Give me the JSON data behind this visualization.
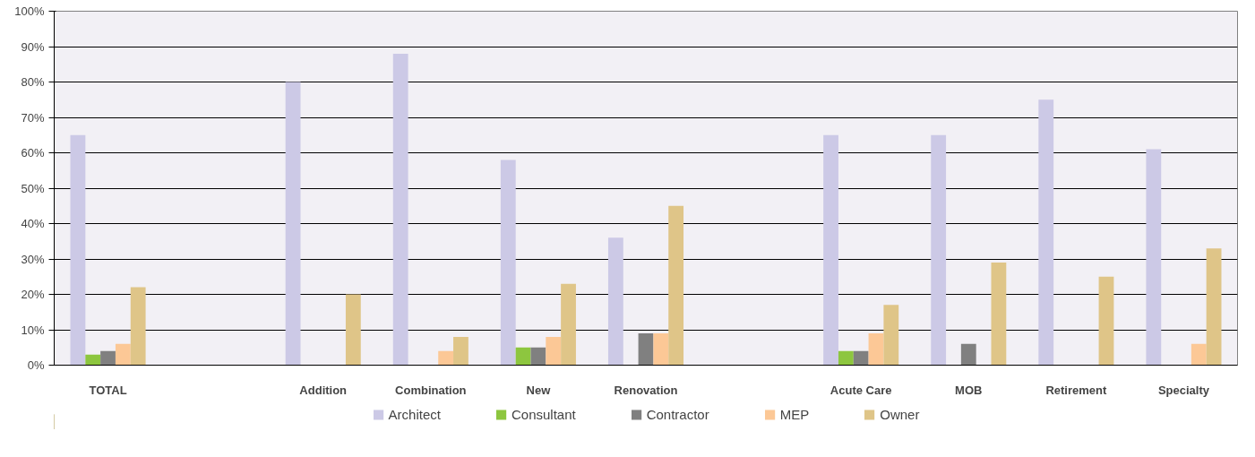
{
  "chart_data": {
    "type": "bar",
    "categories": [
      "TOTAL",
      null,
      "Addition",
      "Combination",
      "New",
      "Renovation",
      null,
      "Acute Care",
      "MOB",
      "Retirement",
      "Specialty"
    ],
    "series": [
      {
        "name": "Architect",
        "color": "#ccc9e6",
        "values": [
          65,
          null,
          80,
          88,
          58,
          36,
          null,
          65,
          65,
          75,
          61
        ]
      },
      {
        "name": "Consultant",
        "color": "#8dc63f",
        "values": [
          3,
          null,
          null,
          null,
          5,
          null,
          null,
          4,
          null,
          null,
          null
        ]
      },
      {
        "name": "Contractor",
        "color": "#808080",
        "values": [
          4,
          null,
          null,
          null,
          5,
          9,
          null,
          4,
          6,
          null,
          null
        ]
      },
      {
        "name": "MEP",
        "color": "#fcc896",
        "values": [
          6,
          null,
          null,
          4,
          8,
          9,
          null,
          9,
          null,
          null,
          6
        ]
      },
      {
        "name": "Owner",
        "color": "#dfc588",
        "values": [
          22,
          null,
          20,
          8,
          23,
          45,
          null,
          17,
          29,
          25,
          33
        ]
      }
    ],
    "ylim": [
      0,
      100
    ],
    "yticks": [
      {
        "value": 0,
        "label": "0%"
      },
      {
        "value": 10,
        "label": "10%"
      },
      {
        "value": 20,
        "label": "20%"
      },
      {
        "value": 30,
        "label": "30%"
      },
      {
        "value": 40,
        "label": "40%"
      },
      {
        "value": 50,
        "label": "50%"
      },
      {
        "value": 60,
        "label": "60%"
      },
      {
        "value": 70,
        "label": "70%"
      },
      {
        "value": 80,
        "label": "80%"
      },
      {
        "value": 90,
        "label": "90%"
      },
      {
        "value": 100,
        "label": "100%"
      }
    ],
    "grid": "y",
    "legend": "bottom"
  }
}
